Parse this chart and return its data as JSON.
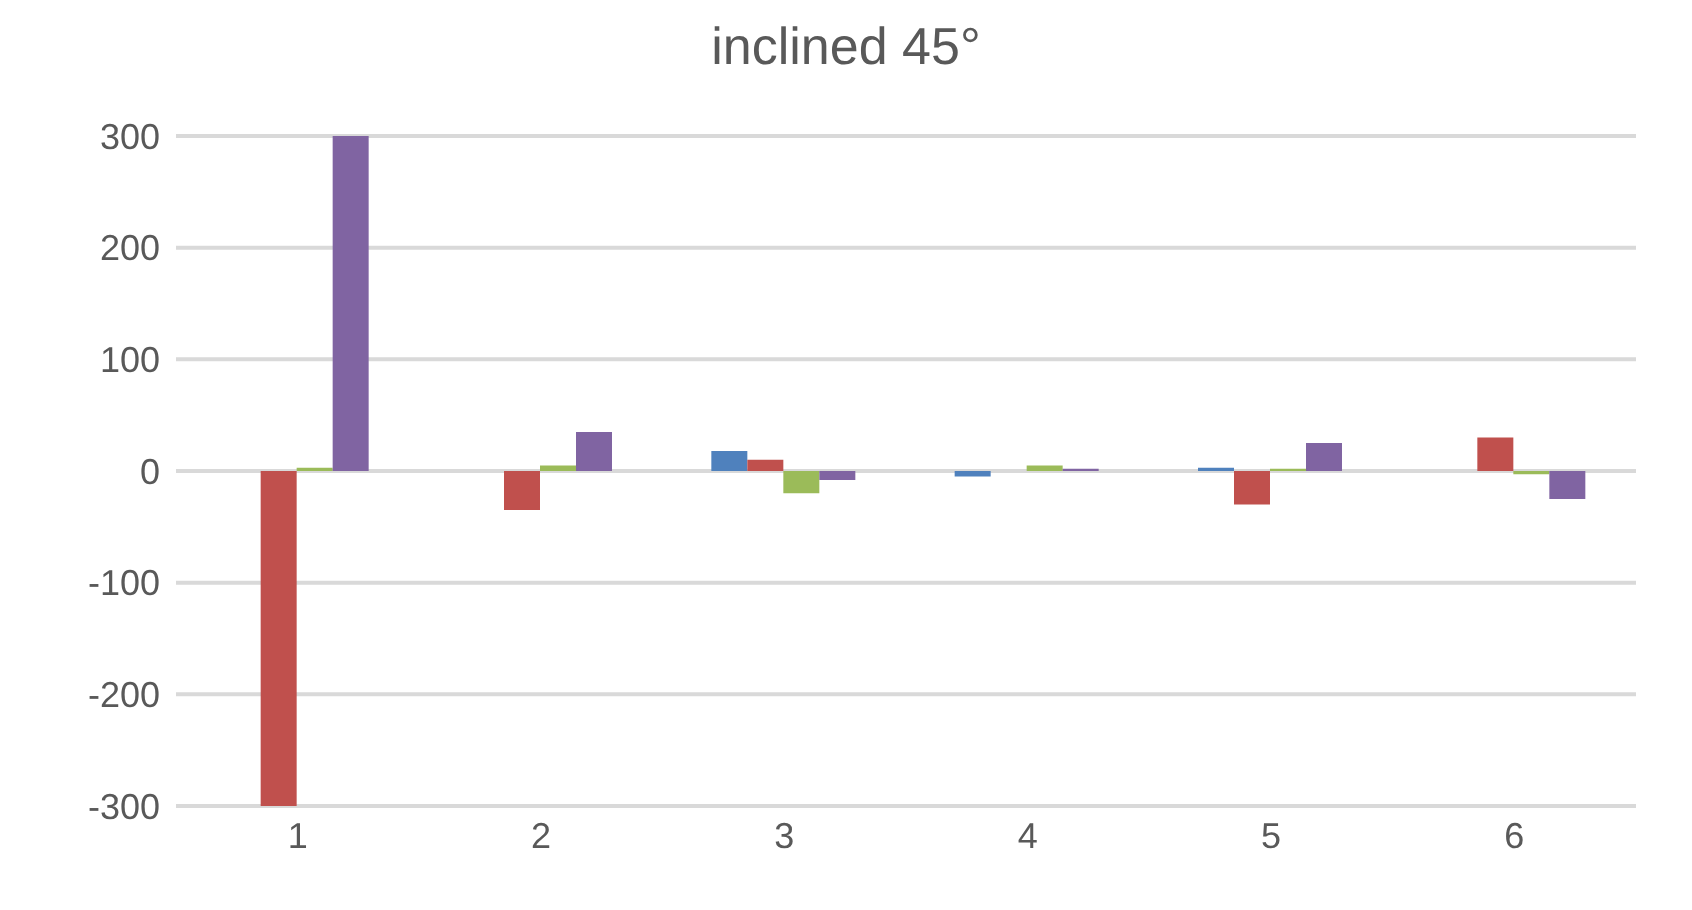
{
  "chart_data": {
    "type": "bar",
    "title": "inclined 45°",
    "categories": [
      "1",
      "2",
      "3",
      "4",
      "5",
      "6"
    ],
    "series": [
      {
        "color": "#4f81bd",
        "values": [
          0,
          0,
          18,
          -5,
          3,
          0
        ]
      },
      {
        "color": "#c0504d",
        "values": [
          -300,
          -35,
          10,
          0,
          -30,
          30
        ]
      },
      {
        "color": "#9bbb59",
        "values": [
          3,
          5,
          -20,
          5,
          2,
          -3
        ]
      },
      {
        "color": "#8064a2",
        "values": [
          300,
          35,
          -8,
          2,
          25,
          -25
        ]
      }
    ],
    "ylim": [
      -300,
      300
    ],
    "yticks": [
      -300,
      -200,
      -100,
      0,
      100,
      200,
      300
    ],
    "grid": "y"
  }
}
